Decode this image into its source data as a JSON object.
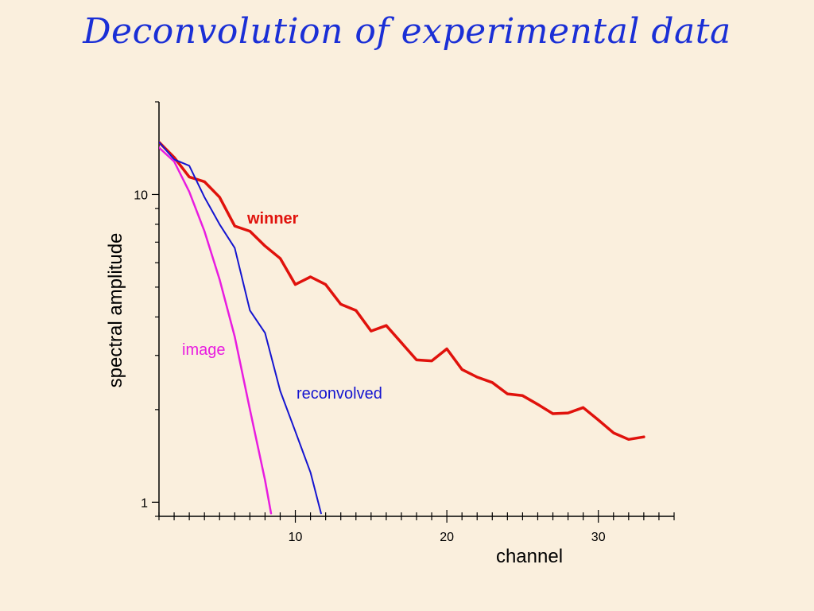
{
  "slide": {
    "title": "Deconvolution of experimental data"
  },
  "chart_data": {
    "type": "line",
    "xlabel": "channel",
    "ylabel": "spectral amplitude",
    "x_scale": "linear",
    "y_scale": "log",
    "xlim": [
      1,
      35
    ],
    "ylim": [
      0.9,
      20
    ],
    "x_ticks": [
      10,
      20,
      30
    ],
    "y_ticks": [
      1,
      10
    ],
    "grid": false,
    "series": [
      {
        "name": "winner",
        "color": "#e0120c",
        "width": 3.5,
        "label_weight": "bold",
        "x": [
          1,
          2,
          3,
          4,
          5,
          6,
          7,
          8,
          9,
          10,
          11,
          12,
          13,
          14,
          15,
          16,
          17,
          18,
          19,
          20,
          21,
          22,
          23,
          24,
          25,
          26,
          27,
          28,
          29,
          30,
          31,
          32,
          33
        ],
        "y": [
          14.8,
          13.2,
          11.4,
          11.0,
          9.8,
          7.9,
          7.6,
          6.8,
          6.2,
          5.1,
          5.4,
          5.1,
          4.4,
          4.2,
          3.6,
          3.75,
          3.3,
          2.9,
          2.88,
          3.15,
          2.7,
          2.55,
          2.45,
          2.25,
          2.22,
          2.08,
          1.94,
          1.95,
          2.03,
          1.85,
          1.68,
          1.6,
          1.63
        ]
      },
      {
        "name": "reconvolved",
        "color": "#1414d0",
        "width": 2,
        "label_weight": "normal",
        "x": [
          1,
          2,
          3,
          4,
          5,
          6,
          7,
          8,
          9,
          10,
          11,
          11.7
        ],
        "y": [
          14.8,
          13.0,
          12.4,
          9.8,
          8.0,
          6.7,
          4.2,
          3.55,
          2.3,
          1.7,
          1.25,
          0.92
        ]
      },
      {
        "name": "image",
        "color": "#e81ce0",
        "width": 2.5,
        "label_weight": "normal",
        "x": [
          1,
          2,
          3,
          4,
          5,
          6,
          7,
          8,
          8.4
        ],
        "y": [
          14.2,
          12.8,
          10.2,
          7.6,
          5.3,
          3.45,
          2.0,
          1.18,
          0.92
        ]
      }
    ]
  }
}
